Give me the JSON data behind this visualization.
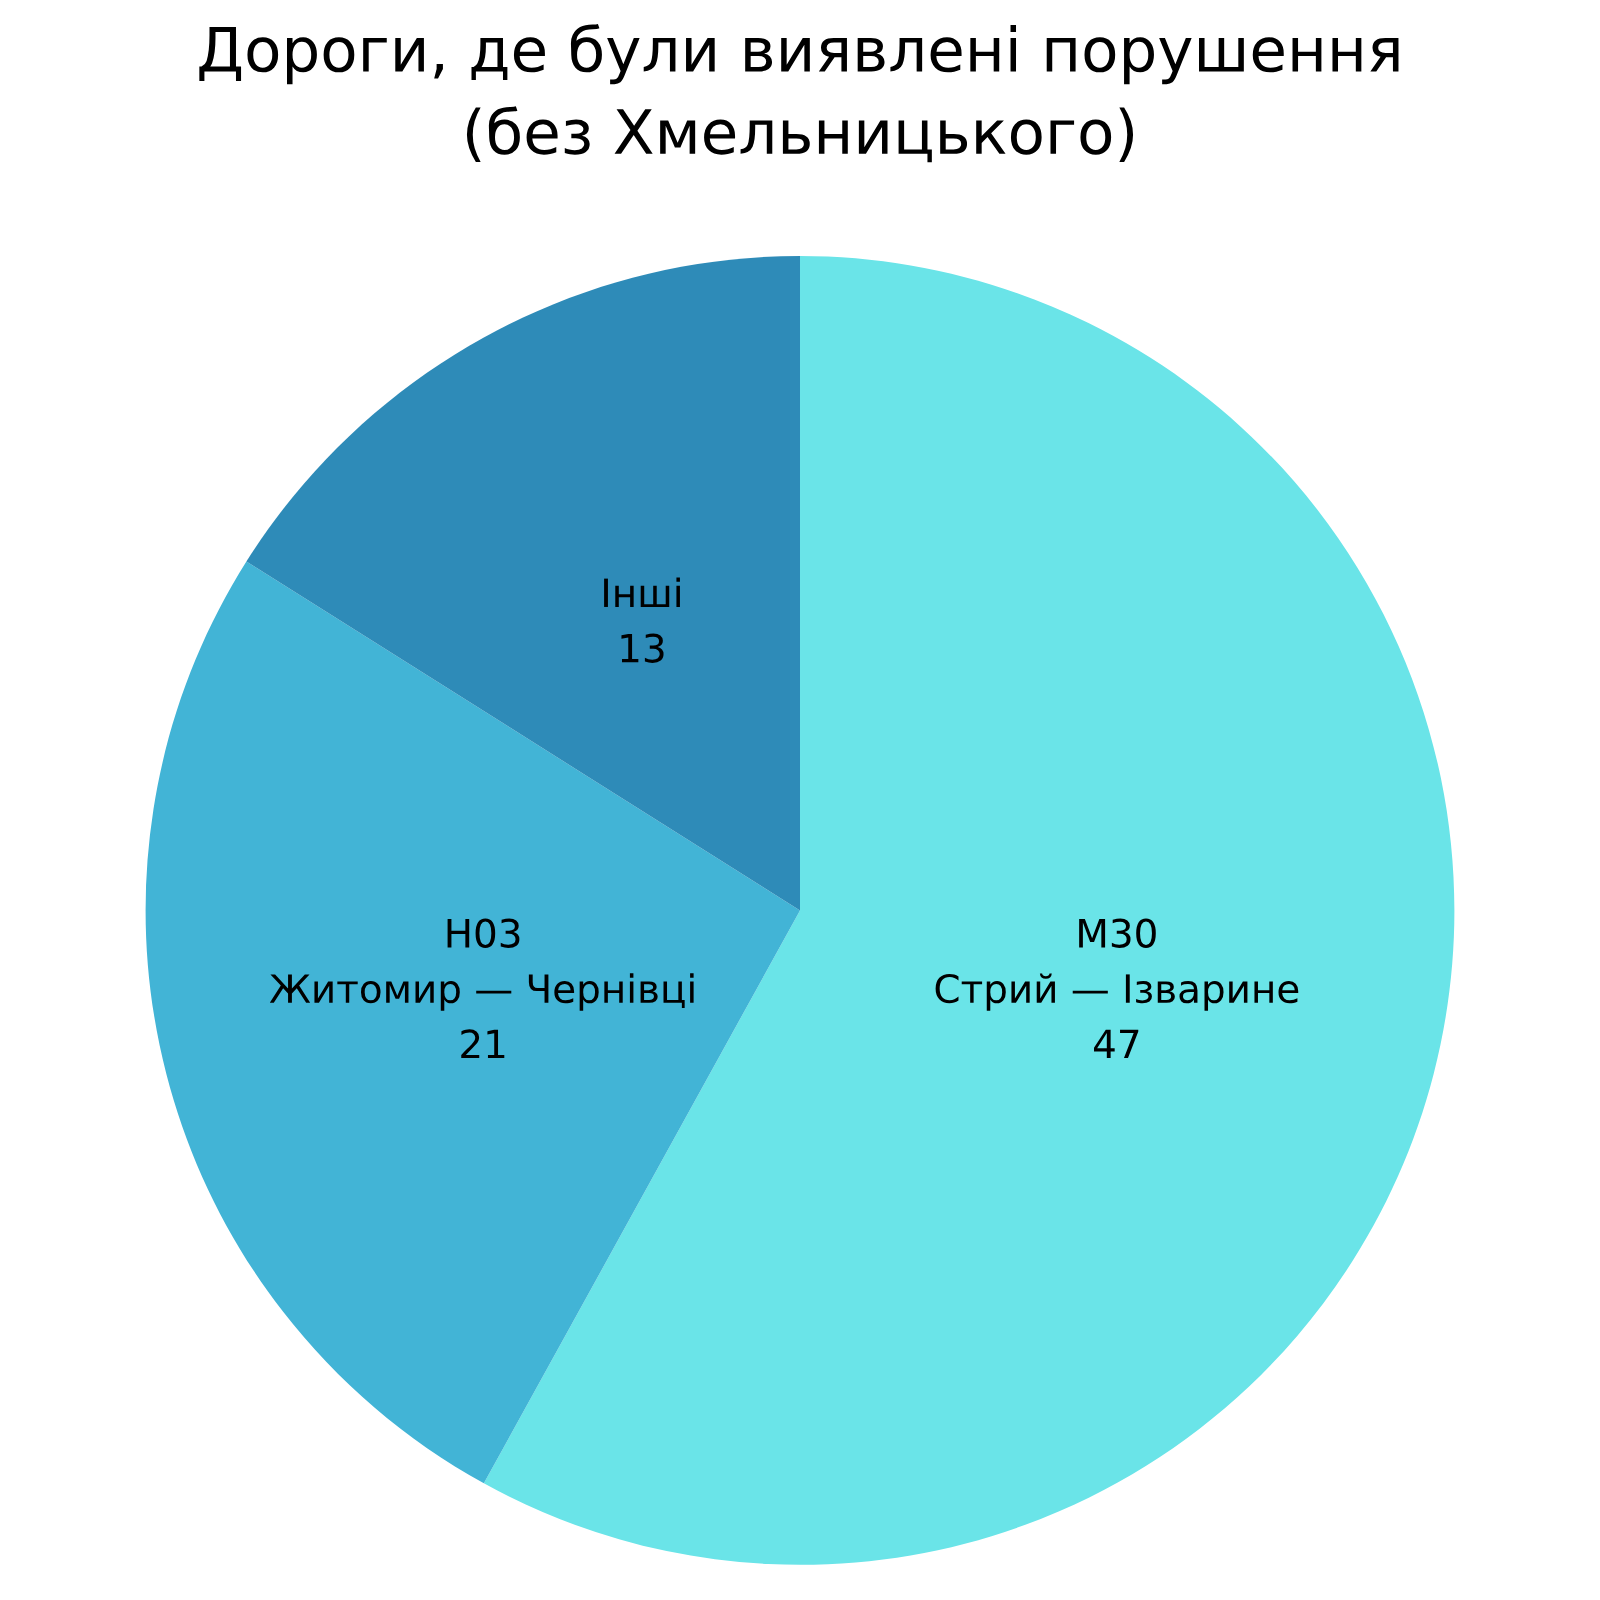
{
  "chart_data": {
    "type": "pie",
    "title": "Дороги, де були виявлені порушення\n(без Хмельницького)",
    "categories": [
      "M30\nСтрий — Ізварине",
      "H03\nЖитомир — Чернівці",
      "Інші"
    ],
    "values": [
      47,
      21,
      13
    ],
    "colors": [
      "#6ae4e8",
      "#42b4d6",
      "#2e8bb8"
    ],
    "data_labels": true
  }
}
